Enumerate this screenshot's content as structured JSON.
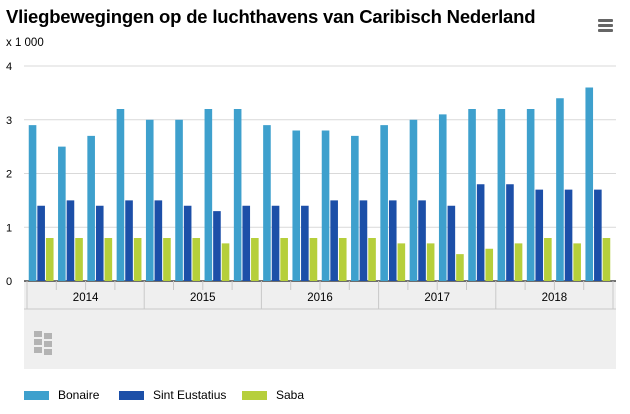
{
  "title": "Vliegbewegingen op de luchthavens van Caribisch Nederland",
  "menu_icon": "hamburger-menu-icon",
  "logo_icon": "cbs-logo-icon",
  "chart_data": {
    "type": "bar",
    "ylabel": "x 1 000",
    "ylim": [
      0,
      4
    ],
    "yticks": [
      "0",
      "1",
      "2",
      "3",
      "4"
    ],
    "grid": true,
    "legend_position": "bottom",
    "groups": [
      "2014",
      "2015",
      "2016",
      "2017",
      "2018"
    ],
    "periods_per_group": 4,
    "series": [
      {
        "name": "Bonaire",
        "color": "#3ea0cd",
        "values": [
          2.9,
          2.5,
          2.7,
          3.2,
          3.0,
          3.0,
          3.2,
          3.2,
          2.9,
          2.8,
          2.8,
          2.7,
          2.9,
          3.0,
          3.1,
          3.2,
          3.2,
          3.2,
          3.4,
          3.6
        ]
      },
      {
        "name": "Sint Eustatius",
        "color": "#1c4fa8",
        "values": [
          1.4,
          1.5,
          1.4,
          1.5,
          1.5,
          1.4,
          1.3,
          1.4,
          1.4,
          1.4,
          1.5,
          1.5,
          1.5,
          1.5,
          1.4,
          1.8,
          1.8,
          1.7,
          1.7,
          1.7
        ]
      },
      {
        "name": "Saba",
        "color": "#b6cf3b",
        "values": [
          0.8,
          0.8,
          0.8,
          0.8,
          0.8,
          0.8,
          0.7,
          0.8,
          0.8,
          0.8,
          0.8,
          0.8,
          0.7,
          0.7,
          0.5,
          0.6,
          0.7,
          0.8,
          0.7,
          0.8
        ]
      }
    ]
  }
}
